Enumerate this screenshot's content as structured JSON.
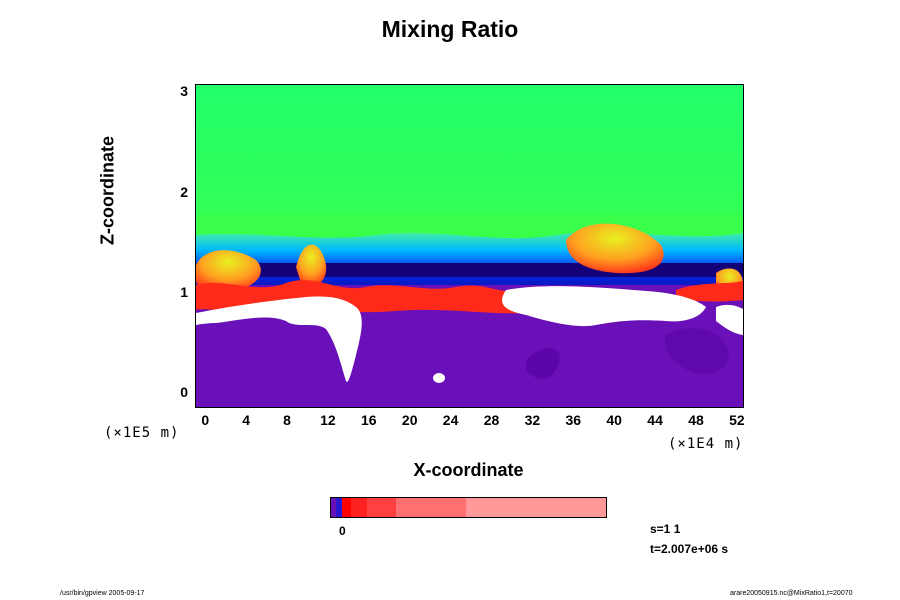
{
  "chart_data": {
    "type": "heatmap",
    "title": "Mixing Ratio",
    "xlabel": "X-coordinate",
    "ylabel": "Z-coordinate",
    "x_ticks": [
      "0",
      "4",
      "8",
      "12",
      "16",
      "20",
      "24",
      "28",
      "32",
      "36",
      "40",
      "44",
      "48",
      "52"
    ],
    "y_ticks": [
      "0",
      "1",
      "2",
      "3"
    ],
    "xlim": [
      -1,
      52.5
    ],
    "ylim": [
      -0.1,
      3.1
    ],
    "x_scale_label": "(×1E4 m)",
    "y_scale_label": "(×1E5 m)",
    "colorbar_label": "0",
    "colors": {
      "green_top": "#22ff6a",
      "green_mid": "#36ff50",
      "yellow": "#d8ef1c",
      "orange": "#ff8a1a",
      "red": "#ff2a1a",
      "cyan": "#00b8ff",
      "blue": "#0018e8",
      "navy": "#140078",
      "purple": "#6a10b8",
      "white": "#ffffff"
    }
  },
  "colorbar": {
    "segments": [
      {
        "color": "#6a10b8",
        "weight": 5
      },
      {
        "color": "#2a18d0",
        "weight": 5
      },
      {
        "color": "#ff0000",
        "weight": 9
      },
      {
        "color": "#ff2020",
        "weight": 15
      },
      {
        "color": "#ff4040",
        "weight": 27
      },
      {
        "color": "#ff7070",
        "weight": 66
      },
      {
        "color": "#ff9898",
        "weight": 132
      }
    ]
  },
  "status": {
    "step": "s=1 1",
    "time": "t=2.007e+06 s"
  },
  "footer": {
    "left": "/usr/bin/gpview 2005-09-17",
    "right": "arare20050915.nc@MixRatio1,t=20070"
  }
}
